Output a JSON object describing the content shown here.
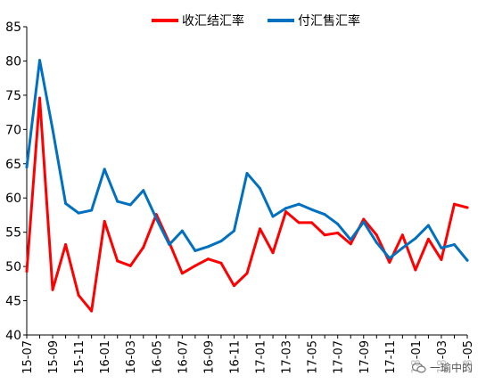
{
  "chart_data": {
    "type": "line",
    "title": "",
    "xlabel": "",
    "ylabel": "",
    "ylim": [
      40,
      85
    ],
    "yticks": [
      40,
      45,
      50,
      55,
      60,
      65,
      70,
      75,
      80,
      85
    ],
    "x": [
      "15-07",
      "15-08",
      "15-09",
      "15-10",
      "15-11",
      "15-12",
      "16-01",
      "16-02",
      "16-03",
      "16-04",
      "16-05",
      "16-06",
      "16-07",
      "16-08",
      "16-09",
      "16-10",
      "16-11",
      "16-12",
      "17-01",
      "17-02",
      "17-03",
      "17-04",
      "17-05",
      "17-06",
      "17-07",
      "17-08",
      "17-09",
      "17-10",
      "17-11",
      "17-12",
      "18-01",
      "18-02",
      "18-03",
      "18-04",
      "18-05"
    ],
    "xtick_labels": [
      "15-07",
      "15-09",
      "15-11",
      "16-01",
      "16-03",
      "16-05",
      "16-07",
      "16-09",
      "16-11",
      "17-01",
      "17-03",
      "17-05",
      "17-07",
      "17-09",
      "17-11",
      "18-01",
      "18-03",
      "18-05"
    ],
    "legend_position": "top",
    "grid": false,
    "series": [
      {
        "name": "收汇结汇率",
        "color": "#ff0000",
        "values": [
          49.3,
          74.6,
          46.6,
          53.2,
          45.8,
          43.5,
          56.6,
          50.8,
          50.1,
          52.8,
          57.6,
          53.5,
          49.0,
          50.1,
          51.1,
          50.5,
          47.2,
          49.0,
          55.5,
          52.0,
          58.0,
          56.4,
          56.4,
          54.6,
          54.9,
          53.3,
          56.9,
          54.6,
          50.6,
          54.6,
          49.5,
          54.0,
          51.0,
          59.1,
          58.6
        ]
      },
      {
        "name": "付汇售汇率",
        "color": "#0070c0",
        "values": [
          64.5,
          80.1,
          70.0,
          59.2,
          57.8,
          58.2,
          64.2,
          59.5,
          59.0,
          61.1,
          57.0,
          53.2,
          55.2,
          52.3,
          52.9,
          53.7,
          55.2,
          63.6,
          61.4,
          57.3,
          58.5,
          59.1,
          58.3,
          57.6,
          56.2,
          53.9,
          56.5,
          53.5,
          51.2,
          52.7,
          54.1,
          56.0,
          52.7,
          53.2,
          50.9
        ]
      }
    ]
  },
  "watermark": {
    "text": "一瑜中的",
    "icon": "wechat-icon"
  }
}
